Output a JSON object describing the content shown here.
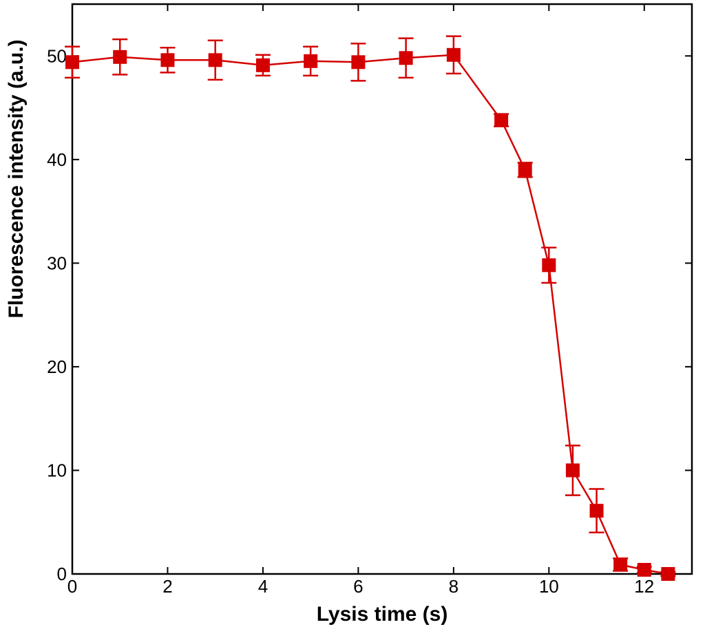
{
  "chart_data": {
    "type": "line",
    "title": "",
    "xlabel": "Lysis time (s)",
    "ylabel": "Fluorescence intensity (a.u.)",
    "xlim": [
      0,
      13
    ],
    "ylim": [
      0,
      55
    ],
    "xticks": [
      0,
      2,
      4,
      6,
      8,
      10,
      12
    ],
    "yticks": [
      0,
      10,
      20,
      30,
      40,
      50
    ],
    "grid": false,
    "legend": "none",
    "series": [
      {
        "color": "#d40000",
        "marker": "square",
        "points": [
          {
            "x": 0,
            "y": 49.4,
            "err": 1.5
          },
          {
            "x": 1,
            "y": 49.9,
            "err": 1.7
          },
          {
            "x": 2,
            "y": 49.6,
            "err": 1.2
          },
          {
            "x": 3,
            "y": 49.6,
            "err": 1.9
          },
          {
            "x": 4,
            "y": 49.1,
            "err": 1.0
          },
          {
            "x": 5,
            "y": 49.5,
            "err": 1.4
          },
          {
            "x": 6,
            "y": 49.4,
            "err": 1.8
          },
          {
            "x": 7,
            "y": 49.8,
            "err": 1.9
          },
          {
            "x": 8,
            "y": 50.1,
            "err": 1.8
          },
          {
            "x": 9,
            "y": 43.8,
            "err": 0.6
          },
          {
            "x": 9.5,
            "y": 39.0,
            "err": 0.7
          },
          {
            "x": 10,
            "y": 29.8,
            "err": 1.7
          },
          {
            "x": 10.5,
            "y": 10.0,
            "err": 2.4
          },
          {
            "x": 11,
            "y": 6.1,
            "err": 2.1
          },
          {
            "x": 11.5,
            "y": 0.9,
            "err": 0.6
          },
          {
            "x": 12,
            "y": 0.4,
            "err": 0.3
          },
          {
            "x": 12.5,
            "y": 0.0,
            "err": 0.2
          }
        ]
      }
    ]
  }
}
